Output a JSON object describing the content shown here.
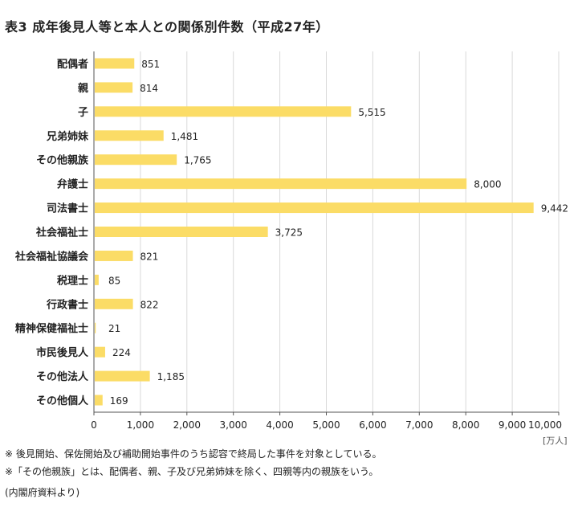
{
  "title": "表3 成年後見人等と本人との関係別件数（平成27年）",
  "unit_label": "[万人]",
  "notes": [
    "※ 後見開始、保佐開始及び補助開始事件のうち認容で終局した事件を対象としている。",
    "※「その他親族」とは、配偶者、親、子及び兄弟姉妹を除く、四親等内の親族をいう。"
  ],
  "source": "(内閣府資料より)",
  "colors": {
    "bar": "#FBDC66",
    "grid": "#d9d9d9",
    "axis": "#555555"
  },
  "chart_data": {
    "type": "bar",
    "orientation": "horizontal",
    "categories": [
      "配偶者",
      "親",
      "子",
      "兄弟姉妹",
      "その他親族",
      "弁護士",
      "司法書士",
      "社会福祉士",
      "社会福祉協議会",
      "税理士",
      "行政書士",
      "精神保健福祉士",
      "市民後見人",
      "その他法人",
      "その他個人"
    ],
    "values": [
      851,
      814,
      5515,
      1481,
      1765,
      8000,
      9442,
      3725,
      821,
      85,
      822,
      21,
      224,
      1185,
      169
    ],
    "value_labels": [
      "851",
      "814",
      "5,515",
      "1,481",
      "1,765",
      "8,000",
      "9,442",
      "3,725",
      "821",
      "85",
      "822",
      "21",
      "224",
      "1,185",
      "169"
    ],
    "xlim": [
      0,
      10000
    ],
    "xticks": [
      0,
      1000,
      2000,
      3000,
      4000,
      5000,
      6000,
      7000,
      8000,
      9000,
      10000
    ],
    "xtick_labels": [
      "0",
      "1,000",
      "2,000",
      "3,000",
      "4,000",
      "5,000",
      "6,000",
      "7,000",
      "8,000",
      "9,000",
      "10,000"
    ],
    "grid": true,
    "legend": "none"
  }
}
